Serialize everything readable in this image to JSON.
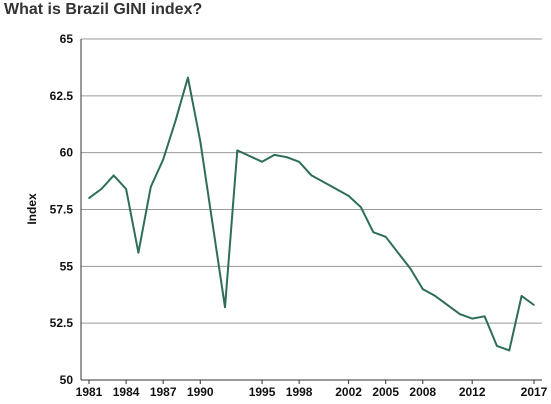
{
  "chart_data": {
    "type": "line",
    "title": "What is Brazil GINI index?",
    "xlabel": "",
    "ylabel": "Index",
    "ylim": [
      50,
      65
    ],
    "xlim": [
      1981,
      2017
    ],
    "yticks": [
      50,
      52.5,
      55,
      57.5,
      60,
      62.5,
      65
    ],
    "ytick_labels": [
      "50",
      "52.5",
      "55",
      "57.5",
      "60",
      "62.5",
      "65"
    ],
    "xticks": [
      1981,
      1984,
      1987,
      1990,
      1995,
      1998,
      2002,
      2005,
      2008,
      2012,
      2017
    ],
    "xtick_labels": [
      "1981",
      "1984",
      "1987",
      "1990",
      "1995",
      "1998",
      "2002",
      "2005",
      "2008",
      "2012",
      "2017"
    ],
    "grid": "horizontal",
    "color": "#2e6e56",
    "series": [
      {
        "points": [
          [
            1981,
            58.0
          ],
          [
            1982,
            58.4
          ],
          [
            1983,
            59.0
          ],
          [
            1984,
            58.4
          ],
          [
            1985,
            55.6
          ],
          [
            1986,
            58.5
          ],
          [
            1987,
            59.7
          ],
          [
            1988,
            61.4
          ],
          [
            1989,
            63.3
          ],
          [
            1990,
            60.5
          ],
          [
            1992,
            53.2
          ],
          [
            1993,
            60.1
          ],
          [
            1995,
            59.6
          ],
          [
            1996,
            59.9
          ],
          [
            1997,
            59.8
          ],
          [
            1998,
            59.6
          ],
          [
            1999,
            59.0
          ],
          [
            2001,
            58.4
          ],
          [
            2002,
            58.1
          ],
          [
            2003,
            57.6
          ],
          [
            2004,
            56.5
          ],
          [
            2005,
            56.3
          ],
          [
            2006,
            55.6
          ],
          [
            2007,
            54.9
          ],
          [
            2008,
            54.0
          ],
          [
            2009,
            53.7
          ],
          [
            2011,
            52.9
          ],
          [
            2012,
            52.7
          ],
          [
            2013,
            52.8
          ],
          [
            2014,
            51.5
          ],
          [
            2015,
            51.3
          ],
          [
            2016,
            53.7
          ],
          [
            2017,
            53.3
          ]
        ]
      }
    ]
  }
}
